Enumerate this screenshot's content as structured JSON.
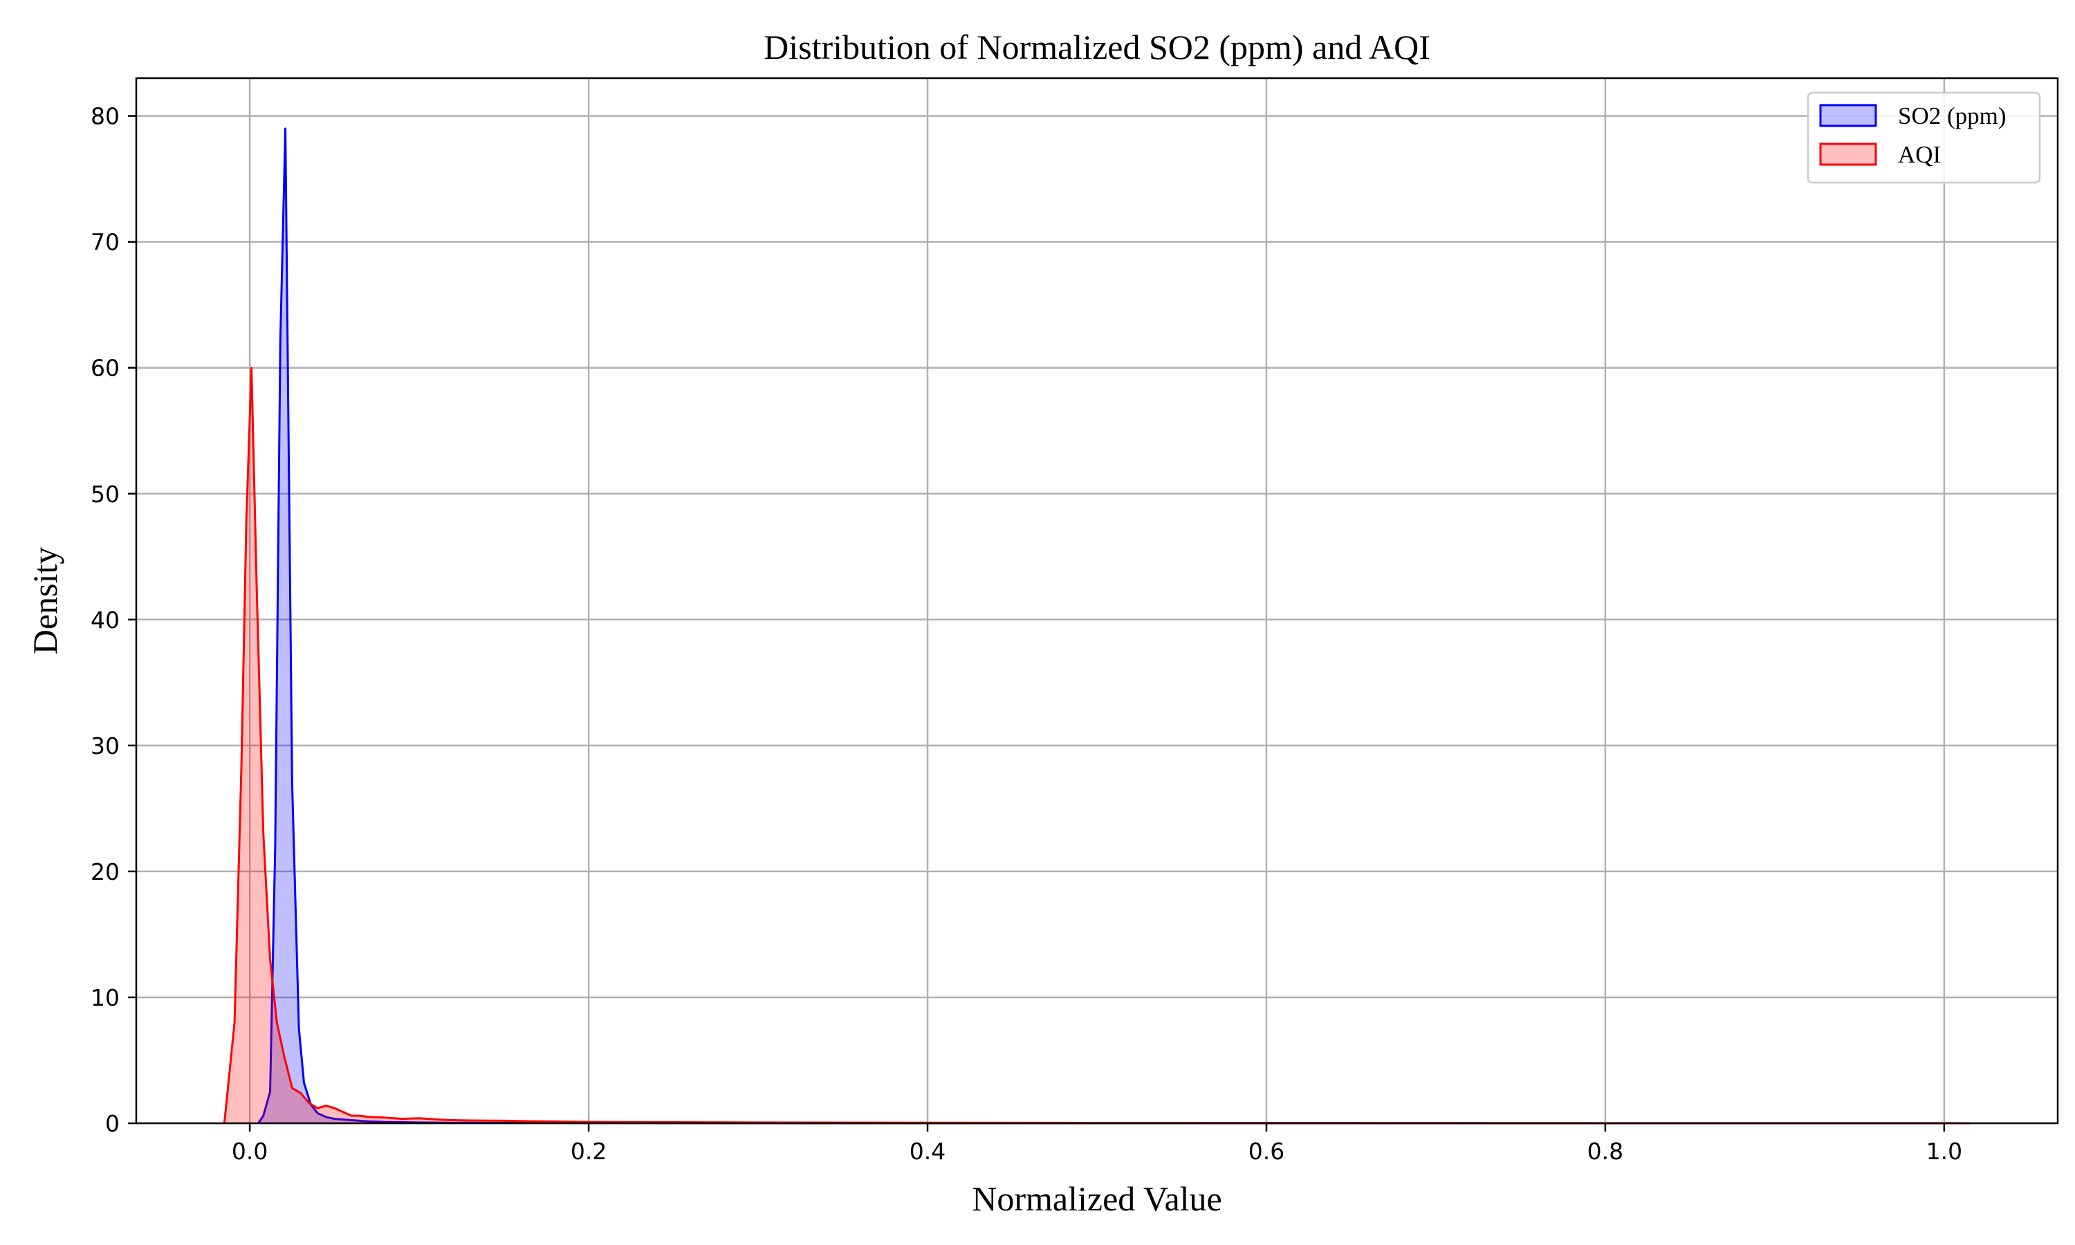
{
  "chart_data": {
    "type": "area",
    "title": "Distribution of Normalized SO2 (ppm) and AQI",
    "xlabel": "Normalized Value",
    "ylabel": "Density",
    "xlim": [
      -0.067,
      1.067
    ],
    "ylim": [
      0,
      83
    ],
    "xticks": [
      0.0,
      0.2,
      0.4,
      0.6,
      0.8,
      1.0
    ],
    "xtick_labels": [
      "0.0",
      "0.2",
      "0.4",
      "0.6",
      "0.8",
      "1.0"
    ],
    "yticks": [
      0,
      10,
      20,
      30,
      40,
      50,
      60,
      70,
      80
    ],
    "ytick_labels": [
      "0",
      "10",
      "20",
      "30",
      "40",
      "50",
      "60",
      "70",
      "80"
    ],
    "grid": true,
    "legend_position": "top-right",
    "series": [
      {
        "name": "SO2 (ppm)",
        "color": "#0000ff",
        "fill": "#0000ff",
        "fill_opacity": 0.25,
        "x": [
          0.005,
          0.008,
          0.012,
          0.015,
          0.018,
          0.021,
          0.025,
          0.029,
          0.032,
          0.036,
          0.04,
          0.045,
          0.05,
          0.06,
          0.07,
          0.08,
          0.1,
          0.12,
          0.15,
          0.2,
          0.3,
          0.5,
          0.7,
          0.9,
          1.0
        ],
        "y": [
          0,
          0.6,
          2.5,
          22,
          62,
          79,
          27,
          7.5,
          3.2,
          1.5,
          0.8,
          0.5,
          0.35,
          0.25,
          0.15,
          0.1,
          0.06,
          0.04,
          0.03,
          0.02,
          0.01,
          0.005,
          0.003,
          0.002,
          0
        ]
      },
      {
        "name": "AQI",
        "color": "#ff0000",
        "fill": "#ff0000",
        "fill_opacity": 0.25,
        "x": [
          -0.015,
          -0.009,
          -0.005,
          -0.002,
          0.001,
          0.004,
          0.008,
          0.012,
          0.016,
          0.02,
          0.025,
          0.03,
          0.035,
          0.04,
          0.045,
          0.05,
          0.055,
          0.06,
          0.065,
          0.07,
          0.08,
          0.09,
          0.1,
          0.11,
          0.12,
          0.13,
          0.15,
          0.17,
          0.2,
          0.25,
          0.3,
          0.4,
          0.5,
          0.6,
          0.7,
          0.8,
          0.9,
          1.0,
          1.015
        ],
        "y": [
          0,
          8,
          28,
          48,
          60,
          43,
          23,
          13,
          8,
          5.5,
          2.8,
          2.4,
          1.6,
          1.2,
          1.4,
          1.2,
          0.9,
          0.6,
          0.6,
          0.5,
          0.45,
          0.35,
          0.4,
          0.3,
          0.25,
          0.22,
          0.2,
          0.15,
          0.1,
          0.08,
          0.06,
          0.04,
          0.03,
          0.02,
          0.02,
          0.01,
          0.01,
          0.005,
          0
        ]
      }
    ]
  }
}
